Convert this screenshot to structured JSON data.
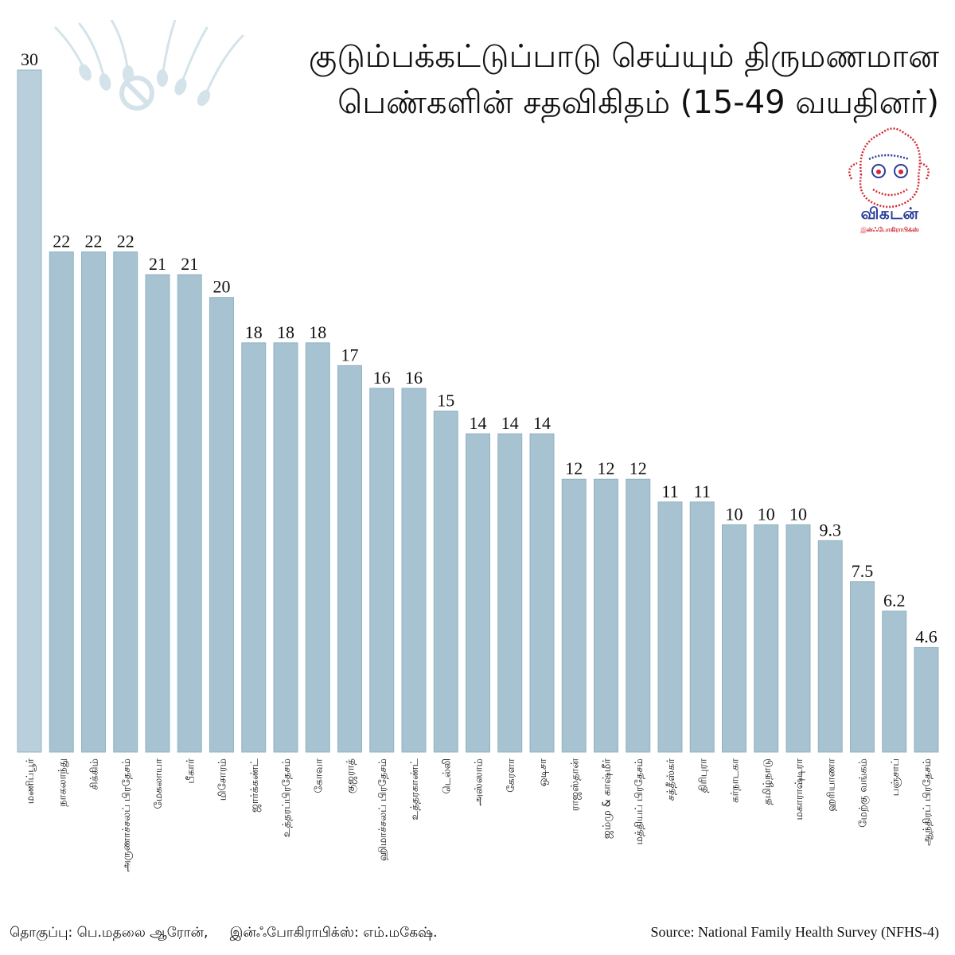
{
  "title": {
    "line1": "குடும்பக்கட்டுப்பாடு செய்யும் திருமணமான",
    "line2": "பெண்களின் சதவிகிதம் (15-49 வயதினர்)"
  },
  "logo": {
    "text": "விகடன்",
    "subtext": "இன்ஃபோகிராபிக்ஸ்"
  },
  "credits": {
    "compiled_by": "தொகுப்பு: பெ.மதலை ஆரோன்,",
    "infographics_by": "இன்ஃபோகிராபிக்ஸ்: எம்.மகேஷ்."
  },
  "source": "Source: National Family Health Survey (NFHS-4)",
  "colors": {
    "bar": "#a7c2d0",
    "bar_highlight": "#b9d0dc",
    "bar_border": "#93b3c3",
    "decoration": "#d4e3ea",
    "logo_primary": "#2a3d99",
    "logo_accent": "#d12a33"
  },
  "chart_data": {
    "type": "bar",
    "orientation": "vertical",
    "categories": [
      "மணிப்பூர்",
      "நாகலாந்து",
      "சிக்கிம்",
      "அருணாச்சலப் பிரதேசம்",
      "மேகலாயா",
      "பீகார்",
      "மிசோரம்",
      "ஜார்க்கண்ட்",
      "உத்தரப்பிரதேசம்",
      "கோவா",
      "குஜராத்",
      "ஹிமாச்சலப் பிரதேசம்",
      "உத்தரகாண்ட்",
      "டெல்லி",
      "அஸ்ஸாம்",
      "கேரளா",
      "ஒடிசா",
      "ராஜஸ்தான்",
      "ஜம்மு & காஷ்மீர்",
      "மத்தியப் பிரதேசம்",
      "சத்தீஸ்கர்",
      "திரிபுரா",
      "கர்நாடகா",
      "தமிழ்நாடு",
      "மகாராஷ்டிரா",
      "ஹரியாணா",
      "மேற்கு வங்கம்",
      "பஞ்சாப்",
      "ஆந்திரப் பிரதேசம்"
    ],
    "values": [
      30,
      22,
      22,
      22,
      21,
      21,
      20,
      18,
      18,
      18,
      17,
      16,
      16,
      15,
      14,
      14,
      14,
      12,
      12,
      12,
      11,
      11,
      10,
      10,
      10,
      9.3,
      7.5,
      6.2,
      4.6
    ],
    "value_labels": [
      "30",
      "22",
      "22",
      "22",
      "21",
      "21",
      "20",
      "18",
      "18",
      "18",
      "17",
      "16",
      "16",
      "15",
      "14",
      "14",
      "14",
      "12",
      "12",
      "12",
      "11",
      "11",
      "10",
      "10",
      "10",
      "9.3",
      "7.5",
      "6.2",
      "4.6"
    ],
    "highlight_index": 0,
    "ylim": [
      0,
      30
    ],
    "grid": false,
    "legend": "none"
  }
}
